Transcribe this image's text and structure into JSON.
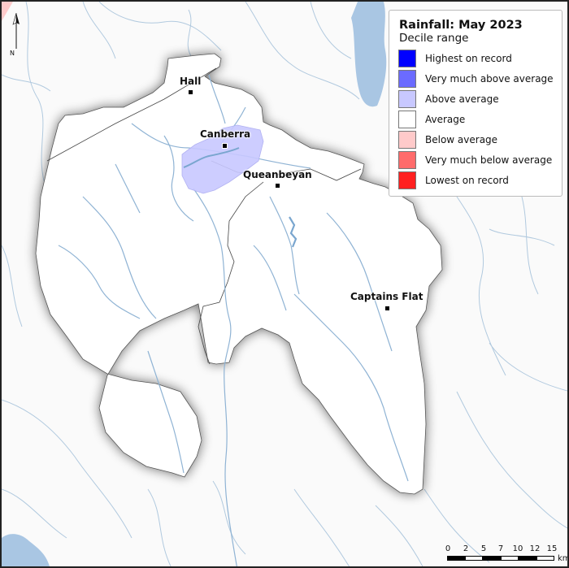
{
  "legend": {
    "title": "Rainfall: May 2023",
    "subtitle": "Decile range",
    "items": [
      {
        "label": "Highest on record",
        "color": "#0000ff"
      },
      {
        "label": "Very much above average",
        "color": "#6b6bff"
      },
      {
        "label": "Above average",
        "color": "#c8c8ff"
      },
      {
        "label": "Average",
        "color": "#ffffff"
      },
      {
        "label": "Below average",
        "color": "#ffcaca"
      },
      {
        "label": "Very much below average",
        "color": "#ff6b6b"
      },
      {
        "label": "Lowest on record",
        "color": "#ff2020"
      }
    ]
  },
  "towns": [
    {
      "name": "Hall"
    },
    {
      "name": "Canberra"
    },
    {
      "name": "Queanbeyan"
    },
    {
      "name": "Captains Flat"
    }
  ],
  "north_arrow": {
    "label": "N"
  },
  "scale": {
    "ticks": [
      "0",
      "2",
      "5",
      "7",
      "10",
      "12",
      "15"
    ],
    "unit": "km"
  },
  "colors": {
    "river": "#8fb3d4",
    "lake": "#a9c6e3",
    "catchment_fill": "#ffffff",
    "above_average_zone": "#c8c8ff"
  }
}
